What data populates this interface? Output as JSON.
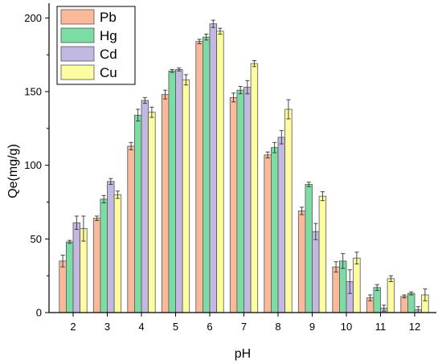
{
  "chart_data": {
    "type": "bar",
    "xlabel": "pH",
    "ylabel": "Qe(mg/g)",
    "categories": [
      "2",
      "3",
      "4",
      "5",
      "6",
      "7",
      "8",
      "9",
      "10",
      "11",
      "12"
    ],
    "ylim": [
      0,
      210
    ],
    "yticks": [
      0,
      50,
      100,
      150,
      200
    ],
    "grid": false,
    "legend_position": "top-left",
    "series": [
      {
        "name": "Pb",
        "color": "#F9B99A",
        "values": [
          35,
          64,
          113,
          148,
          184,
          146,
          107,
          69,
          31,
          10,
          11
        ],
        "errors": [
          4,
          1.5,
          2.5,
          3,
          1.5,
          3,
          2,
          2.5,
          3.5,
          2,
          1
        ]
      },
      {
        "name": "Hg",
        "color": "#7DDBA4",
        "values": [
          48,
          77,
          134,
          164,
          187,
          151,
          112,
          87,
          35,
          17,
          13
        ],
        "errors": [
          1,
          2.5,
          4,
          1,
          2,
          2.5,
          3.5,
          1.5,
          5,
          2,
          1
        ]
      },
      {
        "name": "Cd",
        "color": "#C3B8E2",
        "values": [
          61,
          89,
          144,
          165,
          196,
          153,
          119,
          55,
          21,
          3,
          2
        ],
        "errors": [
          4.5,
          2,
          2,
          1,
          2.5,
          4.5,
          4.5,
          5.5,
          8,
          2,
          2
        ]
      },
      {
        "name": "Cu",
        "color": "#FCFCA0",
        "values": [
          57,
          80,
          136,
          158,
          191,
          169,
          138,
          79,
          37,
          23,
          12
        ],
        "errors": [
          8.5,
          2.5,
          3.5,
          3.5,
          2,
          2,
          6.5,
          3,
          4,
          2,
          4
        ]
      }
    ]
  }
}
